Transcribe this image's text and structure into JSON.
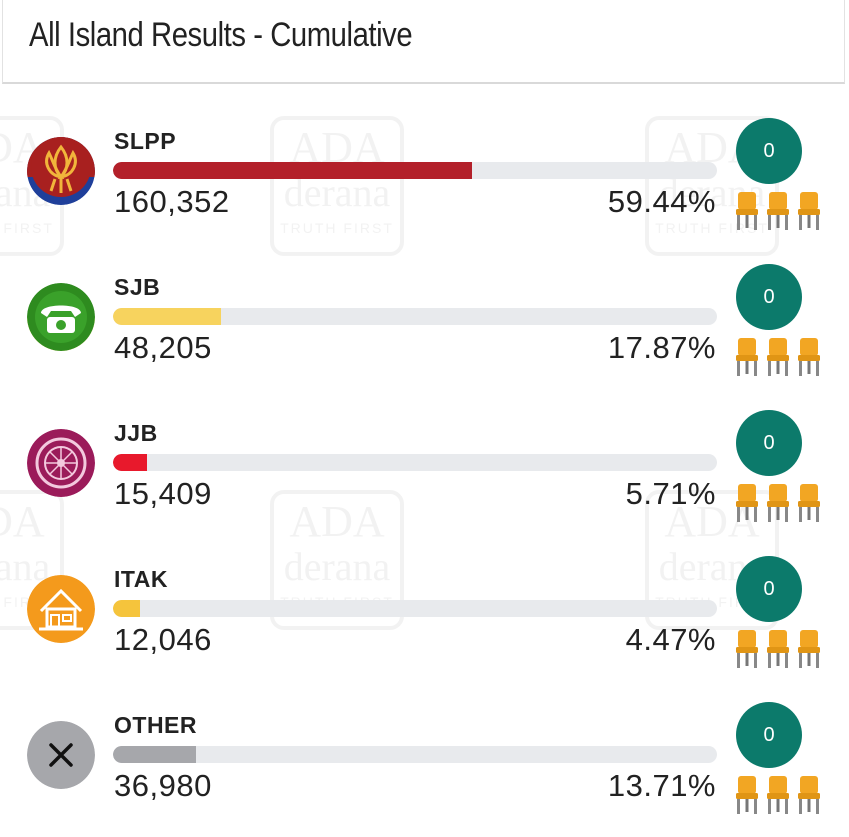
{
  "header": {
    "title": "All Island Results - Cumulative"
  },
  "watermark": {
    "line1": "ADA",
    "line2": "derana",
    "line3": "TRUTH FIRST"
  },
  "chart_data": {
    "type": "bar",
    "orientation": "horizontal",
    "title": "All Island Results - Cumulative",
    "categories": [
      "SLPP",
      "SJB",
      "JJB",
      "ITAK",
      "OTHER"
    ],
    "votes_label": [
      "160,352",
      "48,205",
      "15,409",
      "12,046",
      "36,980"
    ],
    "votes": [
      160352,
      48205,
      15409,
      12046,
      36980
    ],
    "percent_label": [
      "59.44%",
      "17.87%",
      "5.71%",
      "4.47%",
      "13.71%"
    ],
    "percent": [
      59.44,
      17.87,
      5.71,
      4.47,
      13.71
    ],
    "seats": [
      "0",
      "0",
      "0",
      "0",
      "0"
    ],
    "colors": [
      "#b3202a",
      "#f7d35e",
      "#e8192c",
      "#f5c43c",
      "#a6a7ab"
    ],
    "xlim": [
      0,
      100
    ]
  },
  "rows": [
    {
      "name": "SLPP",
      "votes": "160,352",
      "pct": "59.44%",
      "seats": "0",
      "logo": "lotus-bud-icon",
      "color": "#b3202a"
    },
    {
      "name": "SJB",
      "votes": "48,205",
      "pct": "17.87%",
      "seats": "0",
      "logo": "telephone-icon",
      "color": "#f7d35e"
    },
    {
      "name": "JJB",
      "votes": "15,409",
      "pct": "5.71%",
      "seats": "0",
      "logo": "compass-icon",
      "color": "#e8192c"
    },
    {
      "name": "ITAK",
      "votes": "12,046",
      "pct": "4.47%",
      "seats": "0",
      "logo": "house-icon",
      "color": "#f5c43c"
    },
    {
      "name": "OTHER",
      "votes": "36,980",
      "pct": "13.71%",
      "seats": "0",
      "logo": "close-icon",
      "color": "#a6a7ab"
    }
  ],
  "icons": {
    "seat": "chair-icon"
  }
}
